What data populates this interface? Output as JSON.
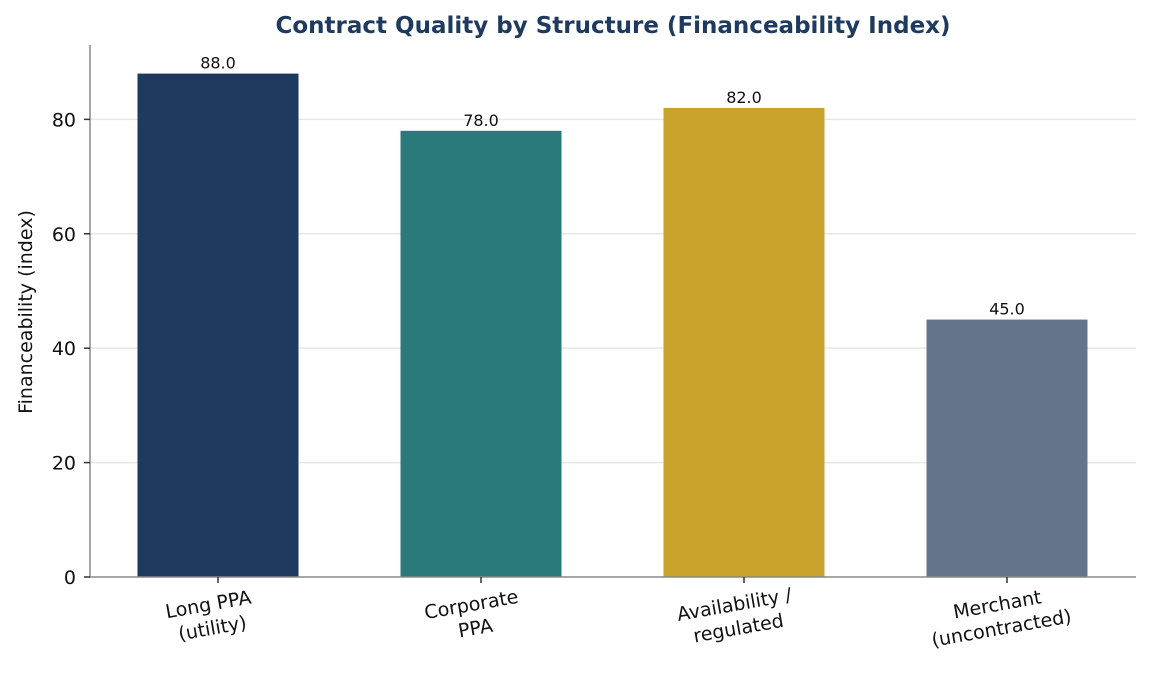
{
  "chart_data": {
    "type": "bar",
    "title": "Contract Quality by Structure (Financeability Index)",
    "xlabel": "",
    "ylabel": "Financeability (index)",
    "categories": [
      [
        "Long PPA",
        "(utility)"
      ],
      [
        "Corporate",
        "PPA"
      ],
      [
        "Availability /",
        "regulated"
      ],
      [
        "Merchant",
        "(uncontracted)"
      ]
    ],
    "values": [
      88.0,
      78.0,
      82.0,
      45.0
    ],
    "value_labels": [
      "88.0",
      "78.0",
      "82.0",
      "45.0"
    ],
    "bar_colors": [
      "#1f3a5f",
      "#2b7a7b",
      "#c9a22b",
      "#64748b"
    ],
    "ylim": [
      0,
      93
    ],
    "yticks": [
      0,
      20,
      40,
      60,
      80
    ],
    "grid": true,
    "legend": "none"
  }
}
